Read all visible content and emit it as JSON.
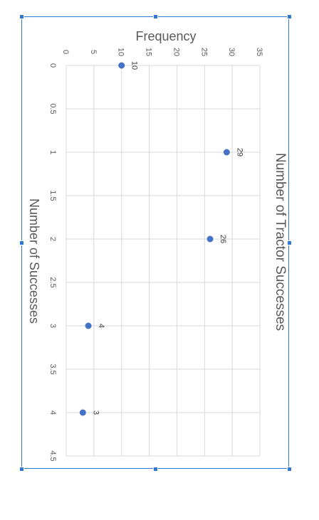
{
  "chart_data": {
    "type": "scatter",
    "title": "Number of Tractor Successes",
    "xlabel": "Number of Successes",
    "ylabel": "Frequency",
    "x": [
      0,
      1,
      2,
      3,
      4
    ],
    "y": [
      10,
      29,
      26,
      4,
      3
    ],
    "data_labels": [
      "10",
      "29",
      "26",
      "4",
      "3"
    ],
    "xlim": [
      0,
      4.5
    ],
    "ylim": [
      0,
      35
    ],
    "x_ticks": [
      "0",
      "0.5",
      "1",
      "1.5",
      "2",
      "2.5",
      "3",
      "3.5",
      "4",
      "4.5"
    ],
    "y_ticks": [
      "0",
      "5",
      "10",
      "15",
      "20",
      "25",
      "30",
      "35"
    ],
    "grid": true,
    "orientation": "rotated-90-clockwise",
    "marker_color": "#4472c4",
    "gridline_color": "#d9d9d9",
    "text_color": "#595959"
  },
  "selection": {
    "border_color": "#2f78d6"
  }
}
